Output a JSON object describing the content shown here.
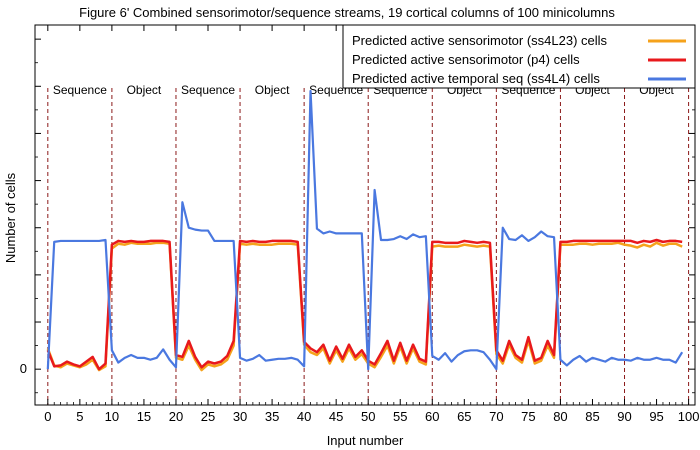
{
  "chart_data": {
    "type": "line",
    "title": "Figure 6' Combined sensorimotor/sequence streams, 19 cortical columns of 100 minicolumns",
    "xlabel": "Input number",
    "ylabel": "Number of cells",
    "xlim": [
      -2,
      101
    ],
    "ylim": [
      -0.38,
      3.65
    ],
    "x_ticks": [
      0,
      5,
      10,
      15,
      20,
      25,
      30,
      35,
      40,
      45,
      50,
      55,
      60,
      65,
      70,
      75,
      80,
      85,
      90,
      95,
      100
    ],
    "y_ticks": [
      0
    ],
    "legend_position": "top-right",
    "grid": false,
    "boundaries": [
      0,
      10,
      20,
      30,
      40,
      50,
      60,
      70,
      80,
      90,
      100
    ],
    "regions": [
      "Sequence",
      "Object",
      "Sequence",
      "Object",
      "Sequence",
      "Sequence",
      "Object",
      "Sequence",
      "Object",
      "Object"
    ],
    "x": [
      0,
      1,
      2,
      3,
      4,
      5,
      6,
      7,
      8,
      9,
      10,
      11,
      12,
      13,
      14,
      15,
      16,
      17,
      18,
      19,
      20,
      21,
      22,
      23,
      24,
      25,
      26,
      27,
      28,
      29,
      30,
      31,
      32,
      33,
      34,
      35,
      36,
      37,
      38,
      39,
      40,
      41,
      42,
      43,
      44,
      45,
      46,
      47,
      48,
      49,
      50,
      51,
      52,
      53,
      54,
      55,
      56,
      57,
      58,
      59,
      60,
      61,
      62,
      63,
      64,
      65,
      66,
      67,
      68,
      69,
      70,
      71,
      72,
      73,
      74,
      75,
      76,
      77,
      78,
      79,
      80,
      81,
      82,
      83,
      84,
      85,
      86,
      87,
      88,
      89,
      90,
      91,
      92,
      93,
      94,
      95,
      96,
      97,
      98,
      99
    ],
    "series": [
      {
        "name": "Predicted active sensorimotor (ss4L23) cells",
        "color": "#f5a21b",
        "values": [
          0.22,
          0.04,
          0.02,
          0.06,
          0.04,
          0.02,
          0.05,
          0.1,
          -0.01,
          0.03,
          1.28,
          1.33,
          1.32,
          1.34,
          1.33,
          1.33,
          1.33,
          1.34,
          1.34,
          1.33,
          0.12,
          0.1,
          0.25,
          0.1,
          -0.01,
          0.05,
          0.03,
          0.05,
          0.1,
          0.25,
          1.33,
          1.32,
          1.33,
          1.32,
          1.32,
          1.32,
          1.33,
          1.33,
          1.33,
          1.32,
          0.26,
          0.18,
          0.15,
          0.22,
          0.06,
          0.2,
          0.08,
          0.22,
          0.1,
          0.16,
          0.06,
          0.02,
          0.13,
          0.25,
          0.06,
          0.24,
          0.06,
          0.22,
          0.08,
          0.05,
          1.3,
          1.31,
          1.3,
          1.3,
          1.3,
          1.32,
          1.31,
          1.3,
          1.31,
          1.3,
          0.16,
          0.06,
          0.26,
          0.12,
          0.07,
          0.3,
          0.06,
          0.09,
          0.25,
          0.12,
          1.32,
          1.32,
          1.32,
          1.33,
          1.33,
          1.32,
          1.33,
          1.33,
          1.33,
          1.34,
          1.32,
          1.31,
          1.29,
          1.32,
          1.3,
          1.34,
          1.31,
          1.33,
          1.33,
          1.3
        ]
      },
      {
        "name": "Predicted active sensorimotor (p4) cells",
        "color": "#e8191c",
        "values": [
          0.2,
          0.03,
          0.04,
          0.08,
          0.05,
          0.03,
          0.08,
          0.13,
          0.0,
          0.06,
          1.32,
          1.36,
          1.35,
          1.36,
          1.35,
          1.35,
          1.36,
          1.36,
          1.36,
          1.35,
          0.15,
          0.13,
          0.3,
          0.13,
          0.02,
          0.08,
          0.06,
          0.08,
          0.14,
          0.3,
          1.36,
          1.35,
          1.36,
          1.35,
          1.35,
          1.36,
          1.36,
          1.36,
          1.36,
          1.35,
          0.29,
          0.22,
          0.18,
          0.26,
          0.09,
          0.24,
          0.11,
          0.26,
          0.13,
          0.2,
          0.09,
          0.05,
          0.17,
          0.3,
          0.09,
          0.28,
          0.09,
          0.26,
          0.11,
          0.08,
          1.35,
          1.35,
          1.34,
          1.34,
          1.34,
          1.36,
          1.35,
          1.34,
          1.35,
          1.34,
          0.2,
          0.09,
          0.3,
          0.15,
          0.1,
          0.34,
          0.09,
          0.12,
          0.3,
          0.15,
          1.35,
          1.35,
          1.36,
          1.36,
          1.36,
          1.36,
          1.36,
          1.36,
          1.36,
          1.36,
          1.36,
          1.36,
          1.34,
          1.36,
          1.35,
          1.37,
          1.35,
          1.36,
          1.36,
          1.35
        ]
      },
      {
        "name": "Predicted active temporal seq (ss4L4) cells",
        "color": "#4a78e0",
        "values": [
          0.0,
          1.35,
          1.36,
          1.36,
          1.36,
          1.36,
          1.36,
          1.36,
          1.36,
          1.37,
          0.2,
          0.07,
          0.12,
          0.15,
          0.12,
          0.12,
          0.1,
          0.12,
          0.21,
          0.1,
          0.02,
          1.77,
          1.5,
          1.48,
          1.47,
          1.47,
          1.36,
          1.36,
          1.36,
          1.36,
          0.12,
          0.09,
          0.11,
          0.15,
          0.09,
          0.1,
          0.11,
          0.11,
          0.12,
          0.1,
          0.03,
          2.95,
          1.49,
          1.44,
          1.46,
          1.44,
          1.44,
          1.44,
          1.44,
          1.44,
          0.0,
          1.9,
          1.37,
          1.37,
          1.38,
          1.41,
          1.38,
          1.43,
          1.4,
          1.41,
          0.14,
          0.1,
          0.17,
          0.08,
          0.15,
          0.19,
          0.2,
          0.2,
          0.18,
          0.1,
          0.0,
          1.5,
          1.38,
          1.37,
          1.42,
          1.36,
          1.4,
          1.46,
          1.41,
          1.4,
          0.1,
          0.04,
          0.1,
          0.14,
          0.08,
          0.12,
          0.1,
          0.08,
          0.12,
          0.1,
          0.1,
          0.09,
          0.12,
          0.1,
          0.1,
          0.12,
          0.1,
          0.1,
          0.07,
          0.18
        ]
      }
    ]
  }
}
